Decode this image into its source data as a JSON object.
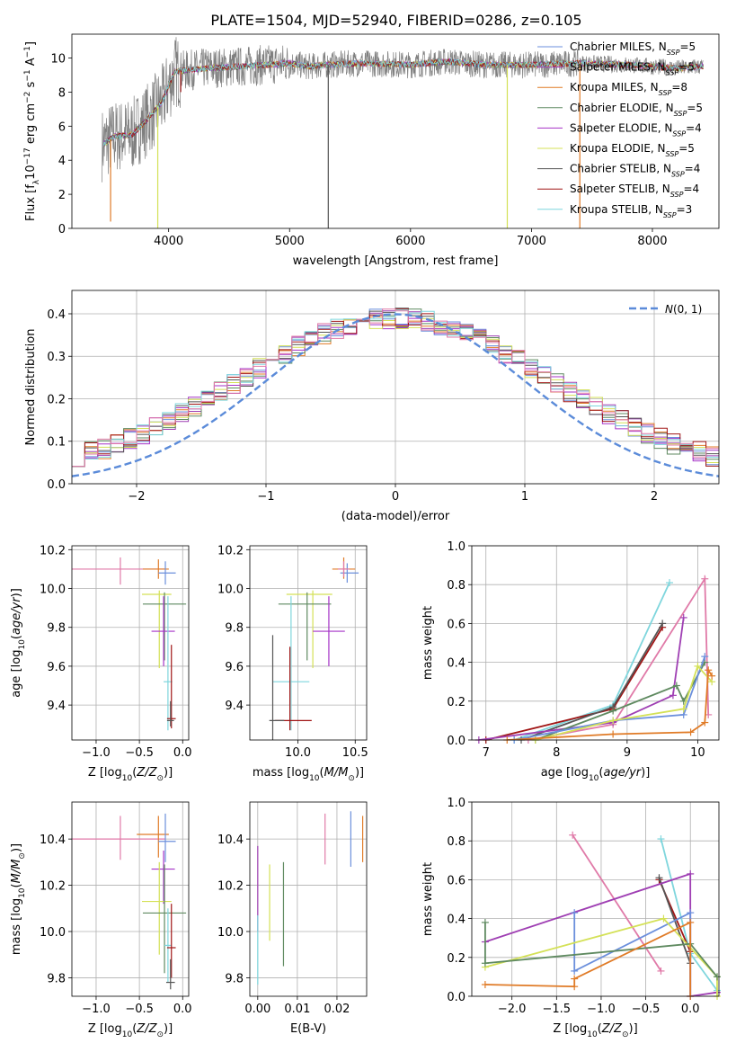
{
  "figure": {
    "title": "PLATE=1504, MJD=52940, FIBERID=0286, z=0.105"
  },
  "colors": {
    "Chabrier MILES": "#6b8fdc",
    "Salpeter MILES": "#9f3fb3",
    "Kroupa MILES": "#e07b27",
    "Chabrier ELODIE": "#5f8a60",
    "Salpeter ELODIE": "#a533c7",
    "Kroupa ELODIE": "#d4e157",
    "Chabrier STELIB": "#555555",
    "Salpeter STELIB": "#a01515",
    "Kroupa STELIB": "#7fd6dd",
    "Pink": "#e07aa8",
    "Data": "#7f7f7f"
  },
  "legend_spectrum": [
    {
      "key": "Chabrier MILES",
      "text": "Chabrier MILES, N",
      "sub": "SSP",
      "val": "=5"
    },
    {
      "key": "Salpeter MILES",
      "text": "Salpeter MILES, N",
      "sub": "SSP",
      "val": "=5"
    },
    {
      "key": "Kroupa MILES",
      "text": "Kroupa MILES, N",
      "sub": "SSP",
      "val": "=8"
    },
    {
      "key": "Chabrier ELODIE",
      "text": "Chabrier ELODIE, N",
      "sub": "SSP",
      "val": "=5"
    },
    {
      "key": "Salpeter ELODIE",
      "text": "Salpeter ELODIE, N",
      "sub": "SSP",
      "val": "=4"
    },
    {
      "key": "Kroupa ELODIE",
      "text": "Kroupa ELODIE, N",
      "sub": "SSP",
      "val": "=5"
    },
    {
      "key": "Chabrier STELIB",
      "text": "Chabrier STELIB, N",
      "sub": "SSP",
      "val": "=4"
    },
    {
      "key": "Salpeter STELIB",
      "text": "Salpeter STELIB, N",
      "sub": "SSP",
      "val": "=4"
    },
    {
      "key": "Kroupa STELIB",
      "text": "Kroupa STELIB, N",
      "sub": "SSP",
      "val": "=3"
    }
  ],
  "chart_data": [
    {
      "id": "spectrum",
      "type": "line",
      "xlabel": "wavelength [Angstrom, rest frame]",
      "ylabel_parts": {
        "a": "Flux [f",
        "b": "λ",
        "c": "10",
        "d": "−17",
        "e": " erg cm",
        "f": "−2",
        "g": " s",
        "h": "−1",
        "i": " A",
        "j": "−1",
        "k": "]"
      },
      "xlim": [
        3200,
        8550
      ],
      "ylim": [
        0,
        11.4
      ],
      "xticks": [
        4000,
        5000,
        6000,
        7000,
        8000
      ],
      "yticks": [
        0,
        2,
        4,
        6,
        8,
        10
      ],
      "grid": false,
      "legend_position": "right",
      "continuum": [
        [
          3450,
          4.9
        ],
        [
          3550,
          5.4
        ],
        [
          3700,
          5.5
        ],
        [
          3850,
          6.6
        ],
        [
          3950,
          7.5
        ],
        [
          4050,
          9.2
        ],
        [
          4300,
          9.4
        ],
        [
          4600,
          9.5
        ],
        [
          4800,
          9.6
        ],
        [
          5000,
          9.7
        ],
        [
          5150,
          9.5
        ],
        [
          5300,
          9.6
        ],
        [
          5600,
          9.7
        ],
        [
          6000,
          9.6
        ],
        [
          6300,
          9.8
        ],
        [
          6600,
          9.6
        ],
        [
          7000,
          9.6
        ],
        [
          7400,
          9.7
        ],
        [
          7800,
          9.6
        ],
        [
          8200,
          9.4
        ],
        [
          8400,
          9.5
        ]
      ],
      "spikes_low": [
        [
          3520,
          0.4
        ],
        [
          3910,
          0
        ],
        [
          4100,
          8.0
        ],
        [
          5320,
          0
        ],
        [
          6800,
          0
        ],
        [
          7400,
          0
        ]
      ]
    },
    {
      "id": "residual_hist",
      "type": "histogram",
      "xlabel": "(data-model)/error",
      "ylabel": "Normed distribution",
      "xlim": [
        -2.5,
        2.5
      ],
      "ylim": [
        0,
        0.455
      ],
      "xticks": [
        -2,
        -1,
        0,
        1,
        2
      ],
      "yticks": [
        0.0,
        0.1,
        0.2,
        0.3,
        0.4
      ],
      "grid": true,
      "bin_width": 0.1,
      "legend": "N(0,1)",
      "legend_position": "top-right",
      "base_series": [
        "Chabrier MILES",
        "Salpeter MILES",
        "Kroupa MILES",
        "Chabrier ELODIE",
        "Salpeter ELODIE",
        "Kroupa ELODIE",
        "Chabrier STELIB",
        "Salpeter STELIB",
        "Kroupa STELIB",
        "Pink"
      ]
    },
    {
      "id": "age_vs_Z",
      "type": "errorbar",
      "xlabel": "Z [log10(Z/Z⊙)]",
      "ylabel": "age  [log10(age/yr)]",
      "xlim": [
        -1.28,
        0.07
      ],
      "ylim": [
        9.22,
        10.22
      ],
      "xticks": [
        -1.0,
        -0.5,
        0.0
      ],
      "yticks": [
        9.4,
        9.6,
        9.8,
        10.0,
        10.2
      ],
      "grid": true,
      "points": [
        {
          "c": "Pink",
          "x": -0.72,
          "xl": -0.5,
          "xh": 0.52,
          "y": 10.1,
          "yl": 0.08,
          "yh": 0.06
        },
        {
          "c": "Kroupa MILES",
          "x": -0.28,
          "xl": 0.18,
          "xh": 0.12,
          "y": 10.1,
          "yl": 0.05,
          "yh": 0.05
        },
        {
          "c": "Chabrier MILES",
          "x": -0.2,
          "xl": 0.08,
          "xh": 0.12,
          "y": 10.08,
          "yl": 0.06,
          "yh": 0.06
        },
        {
          "c": "Kroupa ELODIE",
          "x": -0.27,
          "xl": 0.2,
          "xh": 0.14,
          "y": 9.97,
          "yl": 0.38,
          "yh": 0.02
        },
        {
          "c": "Chabrier ELODIE",
          "x": -0.21,
          "xl": 0.25,
          "xh": 0.25,
          "y": 9.92,
          "yl": 0.29,
          "yh": 0.06
        },
        {
          "c": "Salpeter ELODIE",
          "x": -0.22,
          "xl": 0.14,
          "xh": 0.13,
          "y": 9.78,
          "yl": 0.18,
          "yh": 0.18
        },
        {
          "c": "Kroupa STELIB",
          "x": -0.17,
          "xl": 0.05,
          "xh": 0.05,
          "y": 9.52,
          "yl": 0.25,
          "yh": 0.44
        },
        {
          "c": "Salpeter STELIB",
          "x": -0.13,
          "xl": 0.05,
          "xh": 0.05,
          "y": 9.33,
          "yl": 0.05,
          "yh": 0.38
        },
        {
          "c": "Chabrier STELIB",
          "x": -0.14,
          "xl": 0.04,
          "xh": 0.04,
          "y": 9.32,
          "yl": 0.03,
          "yh": 0.1
        }
      ]
    },
    {
      "id": "age_vs_mass",
      "type": "errorbar",
      "xlabel": "mass [log10(M/M⊙)]",
      "ylabel": "",
      "xlim": [
        9.58,
        10.6
      ],
      "ylim": [
        9.22,
        10.22
      ],
      "xticks": [
        10.0,
        10.5
      ],
      "yticks": [
        9.4,
        9.6,
        9.8,
        10.0,
        10.2
      ],
      "grid": true,
      "points": [
        {
          "c": "Chabrier MILES",
          "x": 10.43,
          "xl": 0.06,
          "xh": 0.1,
          "y": 10.08,
          "yl": 0.05,
          "yh": 0.05
        },
        {
          "c": "Kroupa MILES",
          "x": 10.4,
          "xl": 0.1,
          "xh": 0.1,
          "y": 10.1,
          "yl": 0.05,
          "yh": 0.06
        },
        {
          "c": "Pink",
          "x": 10.4,
          "xl": 0.05,
          "xh": 0.05,
          "y": 10.1,
          "yl": 0.04,
          "yh": 0.04
        },
        {
          "c": "Kroupa ELODIE",
          "x": 10.13,
          "xl": 0.23,
          "xh": 0.17,
          "y": 9.97,
          "yl": 0.38,
          "yh": 0.02
        },
        {
          "c": "Chabrier ELODIE",
          "x": 10.08,
          "xl": 0.25,
          "xh": 0.21,
          "y": 9.92,
          "yl": 0.29,
          "yh": 0.06
        },
        {
          "c": "Salpeter ELODIE",
          "x": 10.27,
          "xl": 0.14,
          "xh": 0.14,
          "y": 9.78,
          "yl": 0.18,
          "yh": 0.18
        },
        {
          "c": "Kroupa STELIB",
          "x": 9.94,
          "xl": 0.16,
          "xh": 0.16,
          "y": 9.52,
          "yl": 0.25,
          "yh": 0.44
        },
        {
          "c": "Salpeter STELIB",
          "x": 9.93,
          "xl": 0.13,
          "xh": 0.19,
          "y": 9.32,
          "yl": 0.05,
          "yh": 0.38
        },
        {
          "c": "Chabrier STELIB",
          "x": 9.78,
          "xl": 0.03,
          "xh": 0.1,
          "y": 9.32,
          "yl": 0.1,
          "yh": 0.44
        }
      ]
    },
    {
      "id": "weight_vs_age",
      "type": "line",
      "xlabel": "age  [log10(age/yr)]",
      "ylabel": "mass weight",
      "xlim": [
        6.8,
        10.3
      ],
      "ylim": [
        0,
        1.0
      ],
      "xticks": [
        7,
        8,
        9,
        10
      ],
      "yticks": [
        0.0,
        0.2,
        0.4,
        0.6,
        0.8,
        1.0
      ],
      "grid": true,
      "series": [
        {
          "c": "Kroupa STELIB",
          "pts": [
            [
              7.4,
              0.0
            ],
            [
              8.8,
              0.18
            ],
            [
              9.6,
              0.81
            ]
          ]
        },
        {
          "c": "Pink",
          "pts": [
            [
              7.6,
              0.0
            ],
            [
              8.8,
              0.08
            ],
            [
              10.1,
              0.83
            ],
            [
              10.15,
              0.13
            ]
          ]
        },
        {
          "c": "Salpeter STELIB",
          "pts": [
            [
              7.0,
              0.0
            ],
            [
              8.8,
              0.16
            ],
            [
              9.5,
              0.58
            ]
          ]
        },
        {
          "c": "Chabrier STELIB",
          "pts": [
            [
              7.5,
              0.0
            ],
            [
              8.8,
              0.17
            ],
            [
              9.5,
              0.6
            ]
          ]
        },
        {
          "c": "Salpeter MILES",
          "pts": [
            [
              6.9,
              0.0
            ],
            [
              8.8,
              0.09
            ],
            [
              9.65,
              0.23
            ],
            [
              9.8,
              0.63
            ]
          ]
        },
        {
          "c": "Chabrier ELODIE",
          "pts": [
            [
              7.7,
              0.0
            ],
            [
              8.8,
              0.15
            ],
            [
              9.7,
              0.28
            ],
            [
              9.8,
              0.2
            ],
            [
              10.1,
              0.4
            ]
          ]
        },
        {
          "c": "Chabrier MILES",
          "pts": [
            [
              7.4,
              0.0
            ],
            [
              8.8,
              0.1
            ],
            [
              9.8,
              0.13
            ],
            [
              10.1,
              0.43
            ]
          ]
        },
        {
          "c": "Kroupa ELODIE",
          "pts": [
            [
              7.7,
              0.0
            ],
            [
              8.8,
              0.1
            ],
            [
              9.8,
              0.16
            ],
            [
              10.0,
              0.38
            ],
            [
              10.2,
              0.3
            ]
          ]
        },
        {
          "c": "Kroupa MILES",
          "pts": [
            [
              7.3,
              0.0
            ],
            [
              8.8,
              0.03
            ],
            [
              9.9,
              0.04
            ],
            [
              10.1,
              0.09
            ],
            [
              10.15,
              0.36
            ],
            [
              10.2,
              0.33
            ]
          ]
        }
      ]
    },
    {
      "id": "mass_vs_Z",
      "type": "errorbar",
      "xlabel": "Z [log10(Z/Z⊙)]",
      "ylabel": "mass [log10(M/M⊙)]",
      "xlim": [
        -1.28,
        0.07
      ],
      "ylim": [
        9.72,
        10.56
      ],
      "xticks": [
        -1.0,
        -0.5,
        0.0
      ],
      "yticks": [
        9.8,
        10.0,
        10.2,
        10.4
      ],
      "grid": true,
      "points": [
        {
          "c": "Pink",
          "x": -0.72,
          "xl": -0.5,
          "xh": 0.52,
          "y": 10.4,
          "yl": 0.09,
          "yh": 0.1
        },
        {
          "c": "Kroupa MILES",
          "x": -0.28,
          "xl": 0.25,
          "xh": 0.12,
          "y": 10.42,
          "yl": 0.1,
          "yh": 0.08
        },
        {
          "c": "Chabrier MILES",
          "x": -0.2,
          "xl": 0.08,
          "xh": 0.12,
          "y": 10.39,
          "yl": 0.09,
          "yh": 0.12
        },
        {
          "c": "Salpeter ELODIE",
          "x": -0.22,
          "xl": 0.14,
          "xh": 0.13,
          "y": 10.27,
          "yl": 0.15,
          "yh": 0.08
        },
        {
          "c": "Kroupa ELODIE",
          "x": -0.27,
          "xl": 0.2,
          "xh": 0.14,
          "y": 10.13,
          "yl": 0.23,
          "yh": 0.17
        },
        {
          "c": "Chabrier ELODIE",
          "x": -0.21,
          "xl": 0.25,
          "xh": 0.25,
          "y": 10.08,
          "yl": 0.26,
          "yh": 0.21
        },
        {
          "c": "Kroupa STELIB",
          "x": -0.17,
          "xl": 0.04,
          "xh": 0.04,
          "y": 9.94,
          "yl": 0.16,
          "yh": 0.16
        },
        {
          "c": "Salpeter STELIB",
          "x": -0.13,
          "xl": 0.05,
          "xh": 0.05,
          "y": 9.93,
          "yl": 0.13,
          "yh": 0.19
        },
        {
          "c": "Chabrier STELIB",
          "x": -0.14,
          "xl": 0.05,
          "xh": 0.05,
          "y": 9.78,
          "yl": 0.03,
          "yh": 0.1
        }
      ]
    },
    {
      "id": "mass_vs_EBV",
      "type": "errorbar",
      "xlabel": "E(B-V)",
      "ylabel": "",
      "xlim": [
        -0.002,
        0.0275
      ],
      "ylim": [
        9.72,
        10.56
      ],
      "xticks": [
        0.0,
        0.01,
        0.02
      ],
      "yticks": [
        9.8,
        10.0,
        10.2,
        10.4
      ],
      "grid": true,
      "points": [
        {
          "c": "Salpeter MILES",
          "x": 0.0,
          "xl": 0,
          "xh": 0,
          "y": 10.17,
          "yl": 0.17,
          "yh": 0.2
        },
        {
          "c": "Kroupa STELIB",
          "x": 0.0,
          "xl": 0,
          "xh": 0,
          "y": 9.92,
          "yl": 0.15,
          "yh": 0.15
        },
        {
          "c": "Kroupa ELODIE",
          "x": 0.003,
          "xl": 0,
          "xh": 0,
          "y": 10.13,
          "yl": 0.17,
          "yh": 0.16
        },
        {
          "c": "Chabrier ELODIE",
          "x": 0.0065,
          "xl": 0,
          "xh": 0,
          "y": 10.07,
          "yl": 0.22,
          "yh": 0.23
        },
        {
          "c": "Pink",
          "x": 0.017,
          "xl": 0,
          "xh": 0,
          "y": 10.4,
          "yl": 0.11,
          "yh": 0.11
        },
        {
          "c": "Chabrier MILES",
          "x": 0.0235,
          "xl": 0,
          "xh": 0,
          "y": 10.4,
          "yl": 0.12,
          "yh": 0.12
        },
        {
          "c": "Kroupa MILES",
          "x": 0.0265,
          "xl": 0,
          "xh": 0,
          "y": 10.4,
          "yl": 0.1,
          "yh": 0.1
        }
      ]
    },
    {
      "id": "weight_vs_Z",
      "type": "line",
      "xlabel": "Z [log10(Z/Z⊙)]",
      "ylabel": "mass weight",
      "xlim": [
        -2.45,
        0.32
      ],
      "ylim": [
        0,
        1.0
      ],
      "xticks": [
        -2.0,
        -1.5,
        -1.0,
        -0.5,
        0.0
      ],
      "yticks": [
        0.0,
        0.2,
        0.4,
        0.6,
        0.8,
        1.0
      ],
      "grid": true,
      "series": [
        {
          "c": "Pink",
          "pts": [
            [
              -1.32,
              0.83
            ],
            [
              -0.33,
              0.13
            ]
          ]
        },
        {
          "c": "Kroupa STELIB",
          "pts": [
            [
              -0.33,
              0.81
            ],
            [
              0.0,
              0.22
            ],
            [
              0.3,
              0.03
            ]
          ]
        },
        {
          "c": "Salpeter STELIB",
          "pts": [
            [
              -0.35,
              0.6
            ],
            [
              0.0,
              0.23
            ]
          ]
        },
        {
          "c": "Chabrier STELIB",
          "pts": [
            [
              -0.35,
              0.61
            ],
            [
              0.0,
              0.17
            ]
          ]
        },
        {
          "c": "Salpeter MILES",
          "pts": [
            [
              -2.3,
              0.28
            ],
            [
              0.0,
              0.63
            ],
            [
              0.0,
              0.0
            ],
            [
              0.3,
              0.02
            ]
          ]
        },
        {
          "c": "Chabrier MILES",
          "pts": [
            [
              -1.3,
              0.43
            ],
            [
              -1.3,
              0.13
            ],
            [
              0.0,
              0.43
            ],
            [
              0.0,
              0.0
            ]
          ]
        },
        {
          "c": "Kroupa ELODIE",
          "pts": [
            [
              -2.3,
              0.15
            ],
            [
              -0.3,
              0.4
            ],
            [
              0.3,
              0.1
            ],
            [
              0.3,
              0.0
            ]
          ]
        },
        {
          "c": "Chabrier ELODIE",
          "pts": [
            [
              -2.3,
              0.38
            ],
            [
              -2.3,
              0.17
            ],
            [
              0.0,
              0.27
            ],
            [
              0.3,
              0.1
            ]
          ]
        },
        {
          "c": "Kroupa MILES",
          "pts": [
            [
              -2.3,
              0.06
            ],
            [
              -1.3,
              0.05
            ],
            [
              -1.3,
              0.09
            ],
            [
              0.0,
              0.38
            ],
            [
              0.0,
              0.0
            ]
          ]
        }
      ]
    }
  ]
}
